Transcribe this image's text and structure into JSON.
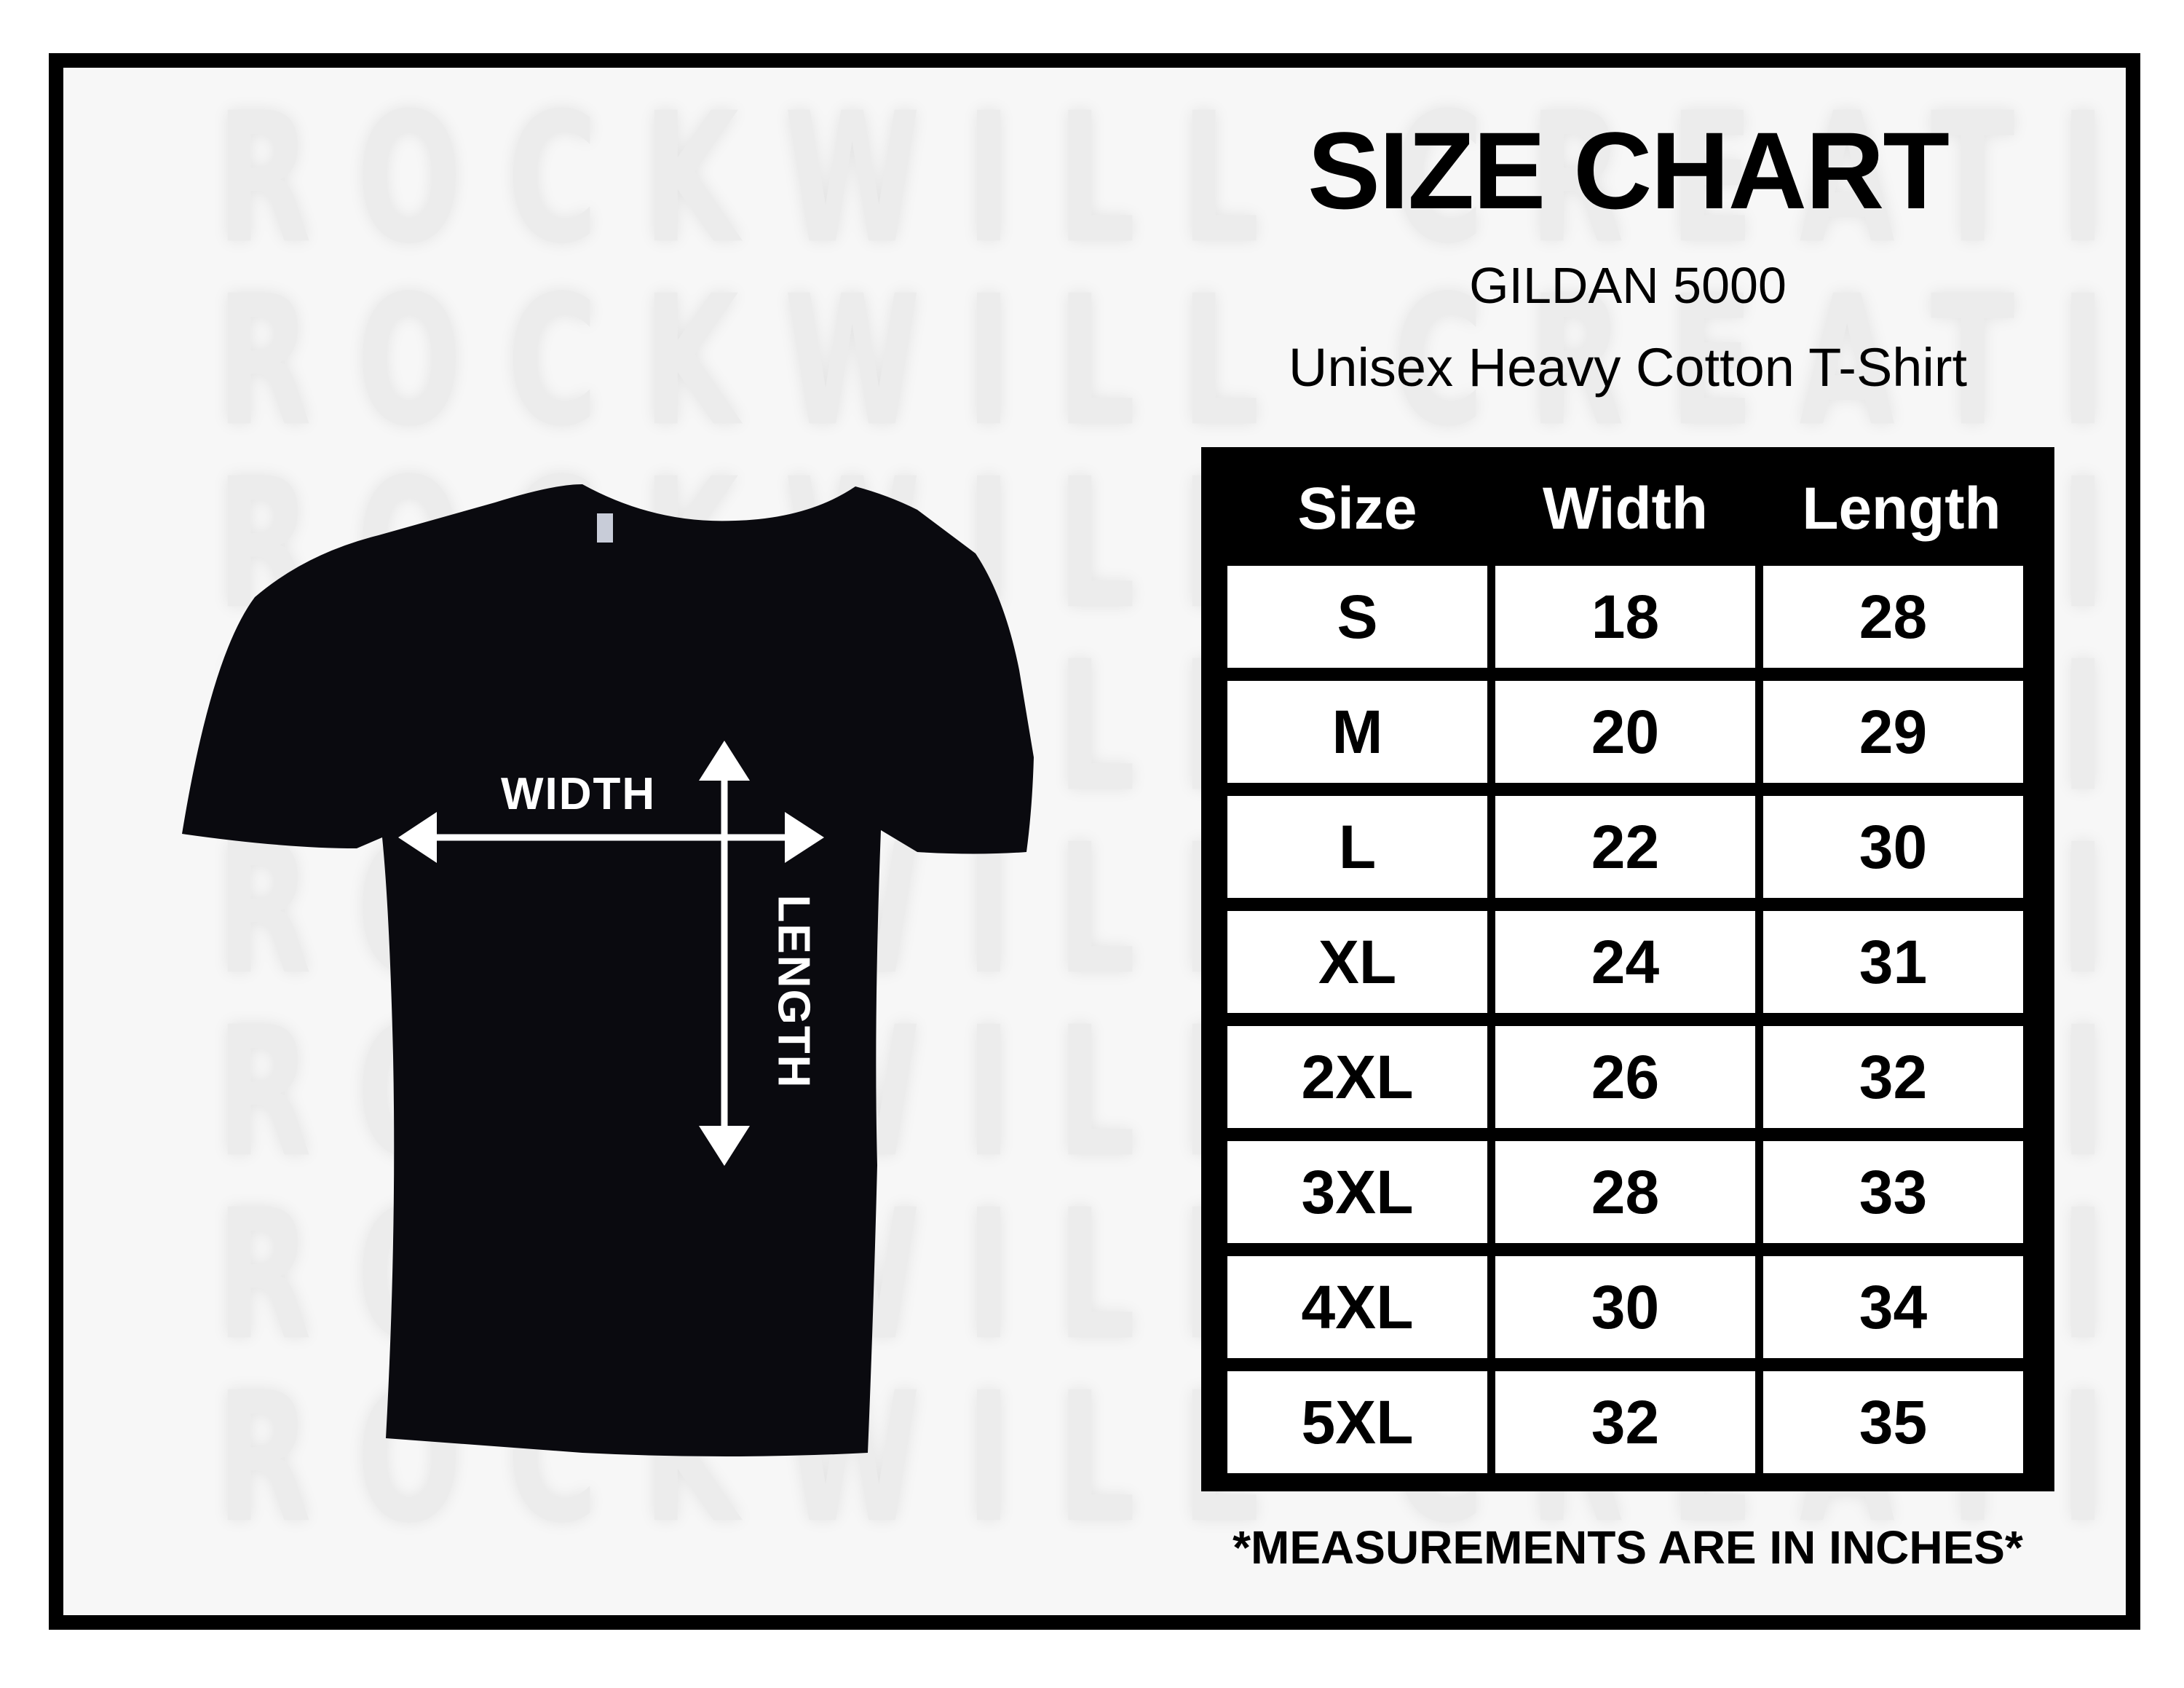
{
  "watermark": {
    "text": "ROCKWILL CREATIVE"
  },
  "header": {
    "title": "SIZE CHART",
    "product_code": "GILDAN 5000",
    "product_name": "Unisex Heavy Cotton T-Shirt"
  },
  "diagram": {
    "width_label": "WIDTH",
    "length_label": "LENGTH",
    "shirt_color": "#0a0a0f"
  },
  "table": {
    "columns": [
      "Size",
      "Width",
      "Length"
    ],
    "rows": [
      [
        "S",
        "18",
        "28"
      ],
      [
        "M",
        "20",
        "29"
      ],
      [
        "L",
        "22",
        "30"
      ],
      [
        "XL",
        "24",
        "31"
      ],
      [
        "2XL",
        "26",
        "32"
      ],
      [
        "3XL",
        "28",
        "33"
      ],
      [
        "4XL",
        "30",
        "34"
      ],
      [
        "5XL",
        "32",
        "35"
      ]
    ]
  },
  "footer": {
    "note": "*MEASUREMENTS ARE IN INCHES*"
  }
}
